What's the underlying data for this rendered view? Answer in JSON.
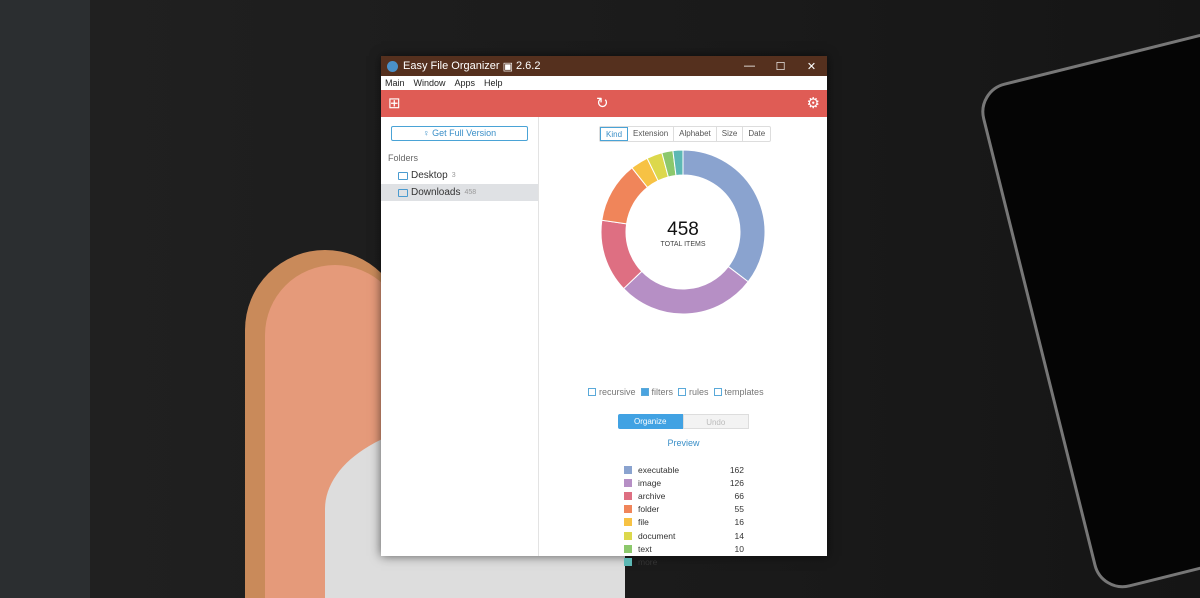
{
  "window": {
    "title": "Easy File Organizer",
    "version": "2.6.2",
    "controls": [
      "—",
      "☐",
      "✕"
    ]
  },
  "menu": [
    "Main",
    "Window",
    "Apps",
    "Help"
  ],
  "toolbar": {
    "icons": [
      "add-folder-icon",
      "refresh-icon",
      "gear-icon"
    ],
    "accent": "#df5c55"
  },
  "sidebar": {
    "get_full_version": "Get Full Version",
    "folders_label": "Folders",
    "folders": [
      {
        "name": "Desktop",
        "count": "3"
      },
      {
        "name": "Downloads",
        "count": "458",
        "selected": true
      }
    ]
  },
  "tabs": [
    {
      "label": "Kind",
      "active": true
    },
    {
      "label": "Extension"
    },
    {
      "label": "Alphabet"
    },
    {
      "label": "Size"
    },
    {
      "label": "Date"
    }
  ],
  "center": {
    "total": "458",
    "label": "TOTAL ITEMS"
  },
  "options": [
    {
      "label": "recursive",
      "checked": false
    },
    {
      "label": "filters",
      "checked": true
    },
    {
      "label": "rules",
      "checked": false
    },
    {
      "label": "templates",
      "checked": false
    }
  ],
  "buttons": {
    "organize": "Organize",
    "undo": "Undo",
    "preview": "Preview"
  },
  "chart_data": {
    "type": "pie",
    "donut": true,
    "total": 458,
    "categories": [
      "executable",
      "image",
      "archive",
      "folder",
      "file",
      "document",
      "text",
      "more"
    ],
    "values": [
      162,
      126,
      66,
      55,
      16,
      14,
      10,
      null
    ],
    "colors": [
      "#8aa3cf",
      "#b68fc5",
      "#de6f82",
      "#f0855a",
      "#f7c244",
      "#dcd84c",
      "#8cc86c",
      "#5cb8b4"
    ]
  }
}
